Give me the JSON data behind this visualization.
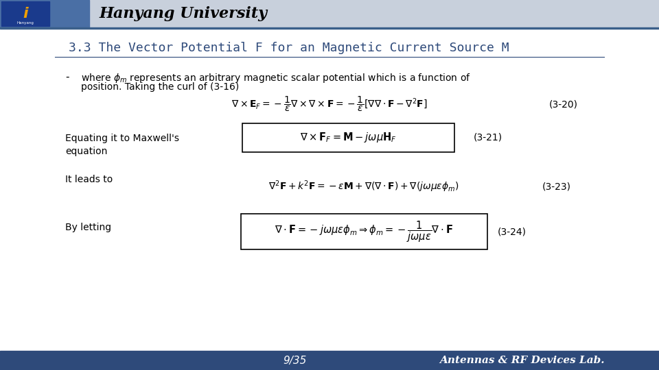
{
  "title": "3.3 The Vector Potential F for an Magnetic Current Source M",
  "header_text": "Hanyang University",
  "header_bar_color": "#2e4a7a",
  "header_logo_bg": "#1a3a8c",
  "title_color": "#2e4a7a",
  "bg_color": "#ffffff",
  "footer_text_left": "9/35",
  "footer_text_right": "Antennas & RF Devices Lab.",
  "bullet_text": "where $\\phi_m$ represents an arbitrary magnetic scalar potential which is a function of\nposition. Taking the curl of (3-16)",
  "eq_320": "$\\nabla \\times \\mathbf{E}_F = -\\dfrac{1}{\\epsilon}\\nabla \\times \\nabla \\times \\mathbf{F} = -\\dfrac{1}{\\epsilon}[\\nabla\\nabla \\cdot \\mathbf{F} - \\nabla^2\\mathbf{F}]$",
  "eq_320_label": "(3-20)",
  "label_maxwell": "Equating it to Maxwell's\nequation",
  "eq_321": "$\\nabla \\times \\mathbf{F}_F = \\mathbf{M} - j\\omega\\mu\\mathbf{H}_F$",
  "eq_321_label": "(3-21)",
  "label_leads": "It leads to",
  "eq_323": "$\\nabla^2\\mathbf{F} + k^2\\mathbf{F} = -\\epsilon\\mathbf{M} + \\nabla(\\nabla \\cdot \\mathbf{F}) + \\nabla(j\\omega\\mu\\epsilon\\phi_m)$",
  "eq_323_label": "(3-23)",
  "label_letting": "By letting",
  "eq_324": "$\\nabla \\cdot \\mathbf{F} = -j\\omega\\mu\\epsilon\\phi_m \\Rightarrow \\phi_m = -\\dfrac{1}{j\\omega\\mu\\epsilon}\\nabla \\cdot \\mathbf{F}$",
  "eq_324_label": "(3-24)"
}
